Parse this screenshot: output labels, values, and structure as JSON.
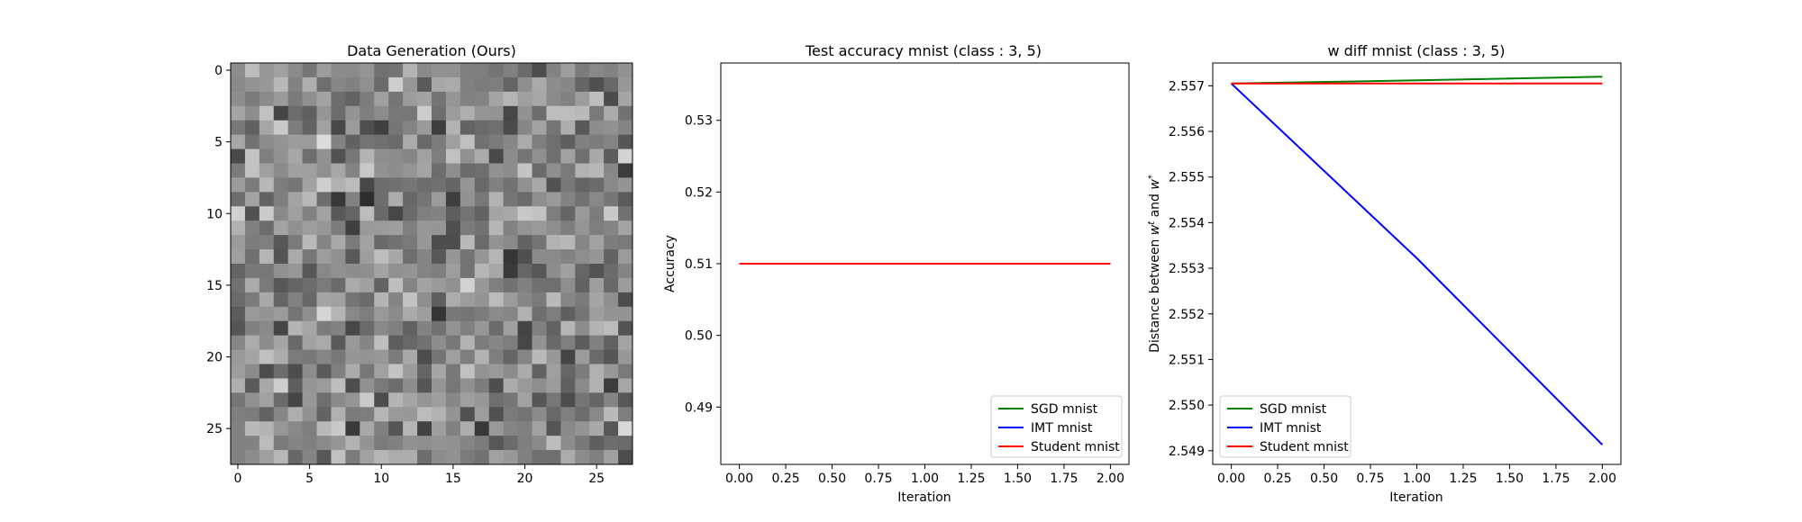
{
  "chart_data": [
    {
      "type": "heatmap",
      "title": "Data Generation (Ours)",
      "colormap": "gray",
      "rows": 28,
      "cols": 28,
      "xticks": [
        0,
        5,
        10,
        15,
        20,
        25
      ],
      "yticks": [
        0,
        5,
        10,
        15,
        20,
        25
      ],
      "xlim": [
        -0.5,
        27.5
      ],
      "ylim": [
        27.5,
        -0.5
      ]
    },
    {
      "type": "line",
      "title": "Test accuracy mnist (class : 3, 5)",
      "xlabel": "Iteration",
      "ylabel": "Accuracy",
      "xlim": [
        -0.1,
        2.1
      ],
      "ylim": [
        0.482,
        0.538
      ],
      "xticks": [
        0.0,
        0.25,
        0.5,
        0.75,
        1.0,
        1.25,
        1.5,
        1.75,
        2.0
      ],
      "xtick_labels": [
        "0.00",
        "0.25",
        "0.50",
        "0.75",
        "1.00",
        "1.25",
        "1.50",
        "1.75",
        "2.00"
      ],
      "yticks": [
        0.49,
        0.5,
        0.51,
        0.52,
        0.53
      ],
      "ytick_labels": [
        "0.49",
        "0.50",
        "0.51",
        "0.52",
        "0.53"
      ],
      "legend_position": "lower right",
      "series": [
        {
          "name": "SGD mnist",
          "color": "#008000",
          "x": [
            0,
            1,
            2
          ],
          "y": [
            0.51,
            0.51,
            0.51
          ]
        },
        {
          "name": "IMT mnist",
          "color": "#0000ff",
          "x": [
            0,
            1,
            2
          ],
          "y": [
            0.51,
            0.51,
            0.51
          ]
        },
        {
          "name": "Student mnist",
          "color": "#ff0000",
          "x": [
            0,
            1,
            2
          ],
          "y": [
            0.51,
            0.51,
            0.51
          ]
        }
      ]
    },
    {
      "type": "line",
      "title": "w diff mnist (class : 3, 5)",
      "xlabel": "Iteration",
      "ylabel": "Distance between w^t and w^*",
      "ylabel_parts": {
        "a": "Distance between ",
        "b": "w",
        "c": "t",
        "d": " and ",
        "e": "w",
        "f": "*"
      },
      "xlim": [
        -0.1,
        2.1
      ],
      "ylim": [
        2.5487,
        2.5575
      ],
      "xticks": [
        0.0,
        0.25,
        0.5,
        0.75,
        1.0,
        1.25,
        1.5,
        1.75,
        2.0
      ],
      "xtick_labels": [
        "0.00",
        "0.25",
        "0.50",
        "0.75",
        "1.00",
        "1.25",
        "1.50",
        "1.75",
        "2.00"
      ],
      "yticks": [
        2.549,
        2.55,
        2.551,
        2.552,
        2.553,
        2.554,
        2.555,
        2.556,
        2.557
      ],
      "ytick_labels": [
        "2.549",
        "2.550",
        "2.551",
        "2.552",
        "2.553",
        "2.554",
        "2.555",
        "2.556",
        "2.557"
      ],
      "legend_position": "lower left",
      "series": [
        {
          "name": "SGD mnist",
          "color": "#008000",
          "x": [
            0,
            1,
            2
          ],
          "y": [
            2.55705,
            2.55712,
            2.5572
          ]
        },
        {
          "name": "IMT mnist",
          "color": "#0000ff",
          "x": [
            0,
            1,
            2
          ],
          "y": [
            2.55705,
            2.55322,
            2.54913
          ]
        },
        {
          "name": "Student mnist",
          "color": "#ff0000",
          "x": [
            0,
            1,
            2
          ],
          "y": [
            2.55705,
            2.55705,
            2.55705
          ]
        }
      ]
    }
  ]
}
